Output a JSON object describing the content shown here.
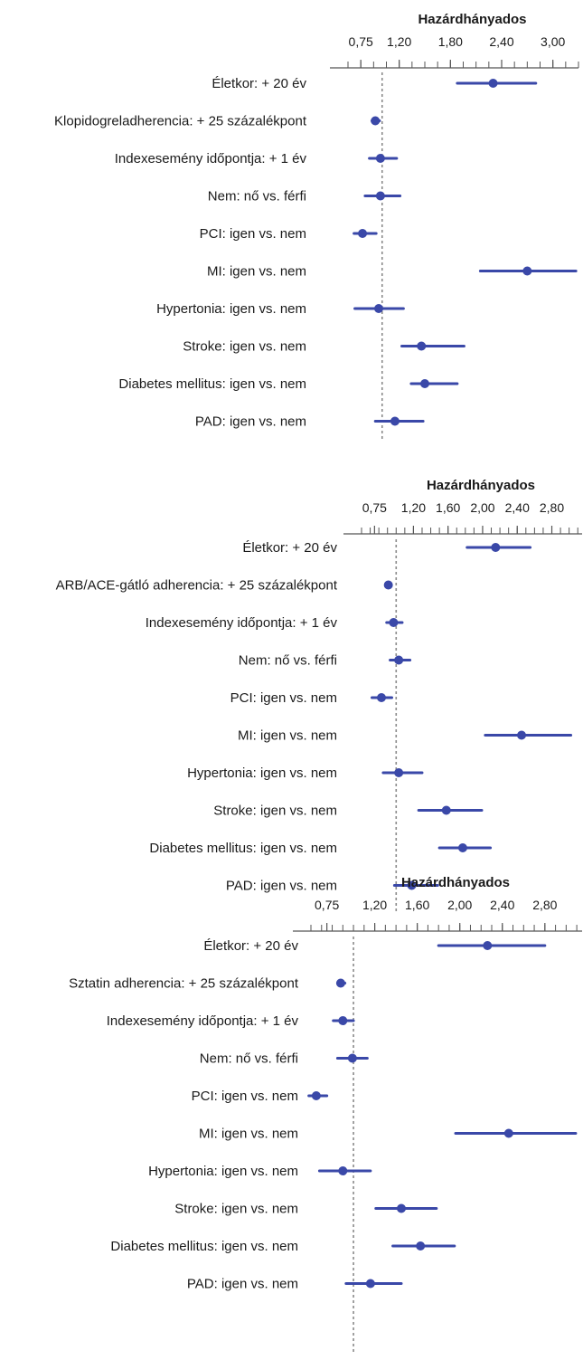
{
  "colors": {
    "series": "#3a48a8",
    "axis": "#555555",
    "reference_line": "#8a8a8a",
    "text": "#1a1a1a",
    "background": "#ffffff"
  },
  "chart_data": [
    {
      "type": "forest",
      "xlabel": "Hazárdhányados",
      "ticks": [
        {
          "v": 0.75,
          "label": "0,75"
        },
        {
          "v": 1.2,
          "label": "1,20"
        },
        {
          "v": 1.8,
          "label": "1,80"
        },
        {
          "v": 2.4,
          "label": "2,40"
        },
        {
          "v": 3.0,
          "label": "3,00"
        }
      ],
      "xlim": [
        0.6,
        3.3
      ],
      "minor_step": 0.15,
      "reference": 1.0,
      "rows": [
        {
          "label": "Életkor: + 20 év",
          "hr": 2.3,
          "lo": 1.88,
          "hi": 2.8
        },
        {
          "label": "Klopidogreladherencia: + 25 százalékpont",
          "hr": 0.92,
          "lo": 0.88,
          "hi": 0.97
        },
        {
          "label": "Indexesemény időpontja: + 1 év",
          "hr": 0.98,
          "lo": 0.85,
          "hi": 1.17
        },
        {
          "label": "Nem: nő vs. férfi",
          "hr": 0.98,
          "lo": 0.8,
          "hi": 1.21
        },
        {
          "label": "PCI: igen vs. nem",
          "hr": 0.77,
          "lo": 0.67,
          "hi": 0.93
        },
        {
          "label": "MI: igen vs. nem",
          "hr": 2.7,
          "lo": 2.15,
          "hi": 3.27
        },
        {
          "label": "Hypertonia: igen vs. nem",
          "hr": 0.96,
          "lo": 0.68,
          "hi": 1.25
        },
        {
          "label": "Stroke: igen vs. nem",
          "hr": 1.46,
          "lo": 1.23,
          "hi": 1.96
        },
        {
          "label": "Diabetes mellitus: igen vs. nem",
          "hr": 1.5,
          "lo": 1.34,
          "hi": 1.88
        },
        {
          "label": "PAD: igen vs. nem",
          "hr": 1.15,
          "lo": 0.92,
          "hi": 1.48
        }
      ]
    },
    {
      "type": "forest",
      "xlabel": "Hazárdhányados",
      "ticks": [
        {
          "v": 0.75,
          "label": "0,75"
        },
        {
          "v": 1.2,
          "label": "1,20"
        },
        {
          "v": 1.6,
          "label": "1,60"
        },
        {
          "v": 2.0,
          "label": "2,00"
        },
        {
          "v": 2.4,
          "label": "2,40"
        },
        {
          "v": 2.8,
          "label": "2,80"
        }
      ],
      "xlim": [
        0.6,
        3.15
      ],
      "minor_step": 0.1,
      "reference": 1.0,
      "rows": [
        {
          "label": "Életkor: + 20 év",
          "hr": 2.15,
          "lo": 1.82,
          "hi": 2.55
        },
        {
          "label": "ARB/ACE-gátló adherencia: + 25 százalékpont",
          "hr": 0.91,
          "lo": 0.88,
          "hi": 0.94
        },
        {
          "label": "Indexesemény időpontja: + 1 év",
          "hr": 0.97,
          "lo": 0.89,
          "hi": 1.07
        },
        {
          "label": "Nem: nő vs. férfi",
          "hr": 1.03,
          "lo": 0.93,
          "hi": 1.16
        },
        {
          "label": "PCI: igen vs. nem",
          "hr": 0.83,
          "lo": 0.72,
          "hi": 0.95
        },
        {
          "label": "MI: igen vs. nem",
          "hr": 2.45,
          "lo": 2.03,
          "hi": 3.02
        },
        {
          "label": "Hypertonia: igen vs. nem",
          "hr": 1.03,
          "lo": 0.85,
          "hi": 1.3
        },
        {
          "label": "Stroke: igen vs. nem",
          "hr": 1.58,
          "lo": 1.26,
          "hi": 1.99
        },
        {
          "label": "Diabetes mellitus: igen vs. nem",
          "hr": 1.77,
          "lo": 1.5,
          "hi": 2.09
        },
        {
          "label": "PAD: igen vs. nem",
          "hr": 1.18,
          "lo": 0.98,
          "hi": 1.48
        }
      ]
    },
    {
      "type": "forest",
      "xlabel": "Hazárdhányados",
      "ticks": [
        {
          "v": 0.75,
          "label": "0,75"
        },
        {
          "v": 1.2,
          "label": "1,20"
        },
        {
          "v": 1.6,
          "label": "1,60"
        },
        {
          "v": 2.0,
          "label": "2,00"
        },
        {
          "v": 2.4,
          "label": "2,40"
        },
        {
          "v": 2.8,
          "label": "2,80"
        }
      ],
      "xlim": [
        0.6,
        3.15
      ],
      "minor_step": 0.1,
      "reference": 1.0,
      "rows": [
        {
          "label": "Életkor: + 20 év",
          "hr": 2.26,
          "lo": 1.8,
          "hi": 2.8
        },
        {
          "label": "Sztatin adherencia: + 25 százalékpont",
          "hr": 0.88,
          "lo": 0.85,
          "hi": 0.92
        },
        {
          "label": "Indexesemény időpontja: + 1 év",
          "hr": 0.9,
          "lo": 0.81,
          "hi": 1.0
        },
        {
          "label": "Nem: nő vs. férfi",
          "hr": 0.99,
          "lo": 0.85,
          "hi": 1.13
        },
        {
          "label": "PCI: igen vs. nem",
          "hr": 0.65,
          "lo": 0.58,
          "hi": 0.75
        },
        {
          "label": "MI: igen vs. nem",
          "hr": 2.46,
          "lo": 1.96,
          "hi": 3.09
        },
        {
          "label": "Hypertonia: igen vs. nem",
          "hr": 0.9,
          "lo": 0.68,
          "hi": 1.16
        },
        {
          "label": "Stroke: igen vs. nem",
          "hr": 1.45,
          "lo": 1.21,
          "hi": 1.78
        },
        {
          "label": "Diabetes mellitus: igen vs. nem",
          "hr": 1.63,
          "lo": 1.37,
          "hi": 1.95
        },
        {
          "label": "PAD: igen vs. nem",
          "hr": 1.16,
          "lo": 0.93,
          "hi": 1.45
        }
      ]
    }
  ]
}
